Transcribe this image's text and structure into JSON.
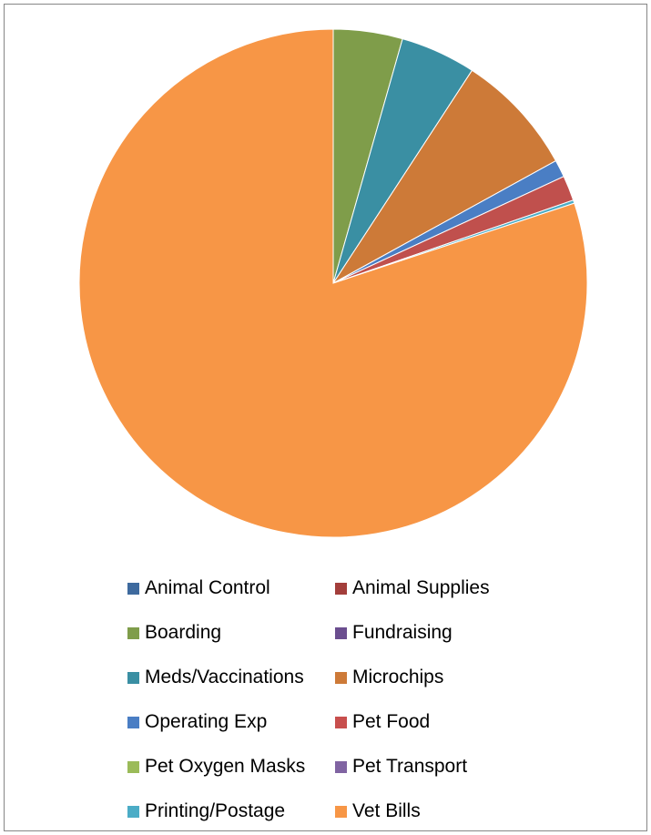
{
  "chart_data": {
    "type": "pie",
    "title": "",
    "legend_position": "bottom",
    "slices": [
      {
        "label": "Animal Control",
        "value": 0.0,
        "color": "#4F81BD"
      },
      {
        "label": "Animal Supplies",
        "value": 0.0,
        "color": "#C0504D"
      },
      {
        "label": "Boarding",
        "value": 4.4,
        "color": "#8064A2"
      },
      {
        "label": "Fundraising",
        "value": 0.0,
        "color": "#4BACC6"
      },
      {
        "label": "Meds/Vaccinations",
        "value": 4.8,
        "color": "#F79646"
      },
      {
        "label": "Microchips",
        "value": 7.8,
        "color": "#2C4D75"
      },
      {
        "label": "Operating Exp",
        "value": 1.1,
        "color": "#772C2A"
      },
      {
        "label": "Pet Food",
        "value": 1.6,
        "color": "#5F7530"
      },
      {
        "label": "Pet Oxygen Masks",
        "value": 0.0,
        "color": "#4D3B62"
      },
      {
        "label": "Pet Transport",
        "value": 0.0,
        "color": "#276A7C"
      },
      {
        "label": "Printing/Postage",
        "value": 0.2,
        "color": "#B65708"
      },
      {
        "label": "Vet Bills",
        "value": 80.1,
        "color": "#729ACA"
      }
    ]
  },
  "render_colors": {
    "pie": [
      "#4F81BD",
      "#C0504D",
      "#9BBB59",
      "#8064A2",
      "#4BACC6",
      "#F79646",
      "#4F81BD",
      "#C0504D",
      "#9BBB59",
      "#8064A2",
      "#4BACC6",
      "#F79646"
    ],
    "slice_alt": {
      "Boarding": "#7F9D4A",
      "Meds/Vaccinations": "#3A8FA3",
      "Microchips": "#CD7A38",
      "Operating Exp": "#4A7EC4",
      "Pet Food": "#C0504D",
      "Printing/Postage": "#4BACC6",
      "Vet Bills": "#F79646"
    },
    "legend": [
      "#3E6A9E",
      "#A33E3B",
      "#7F9D4A",
      "#6B4E8F",
      "#3A8FA3",
      "#CD7A38",
      "#4A7EC4",
      "#C84F4D",
      "#9BBB59",
      "#8064A2",
      "#4BACC6",
      "#F79646"
    ]
  }
}
